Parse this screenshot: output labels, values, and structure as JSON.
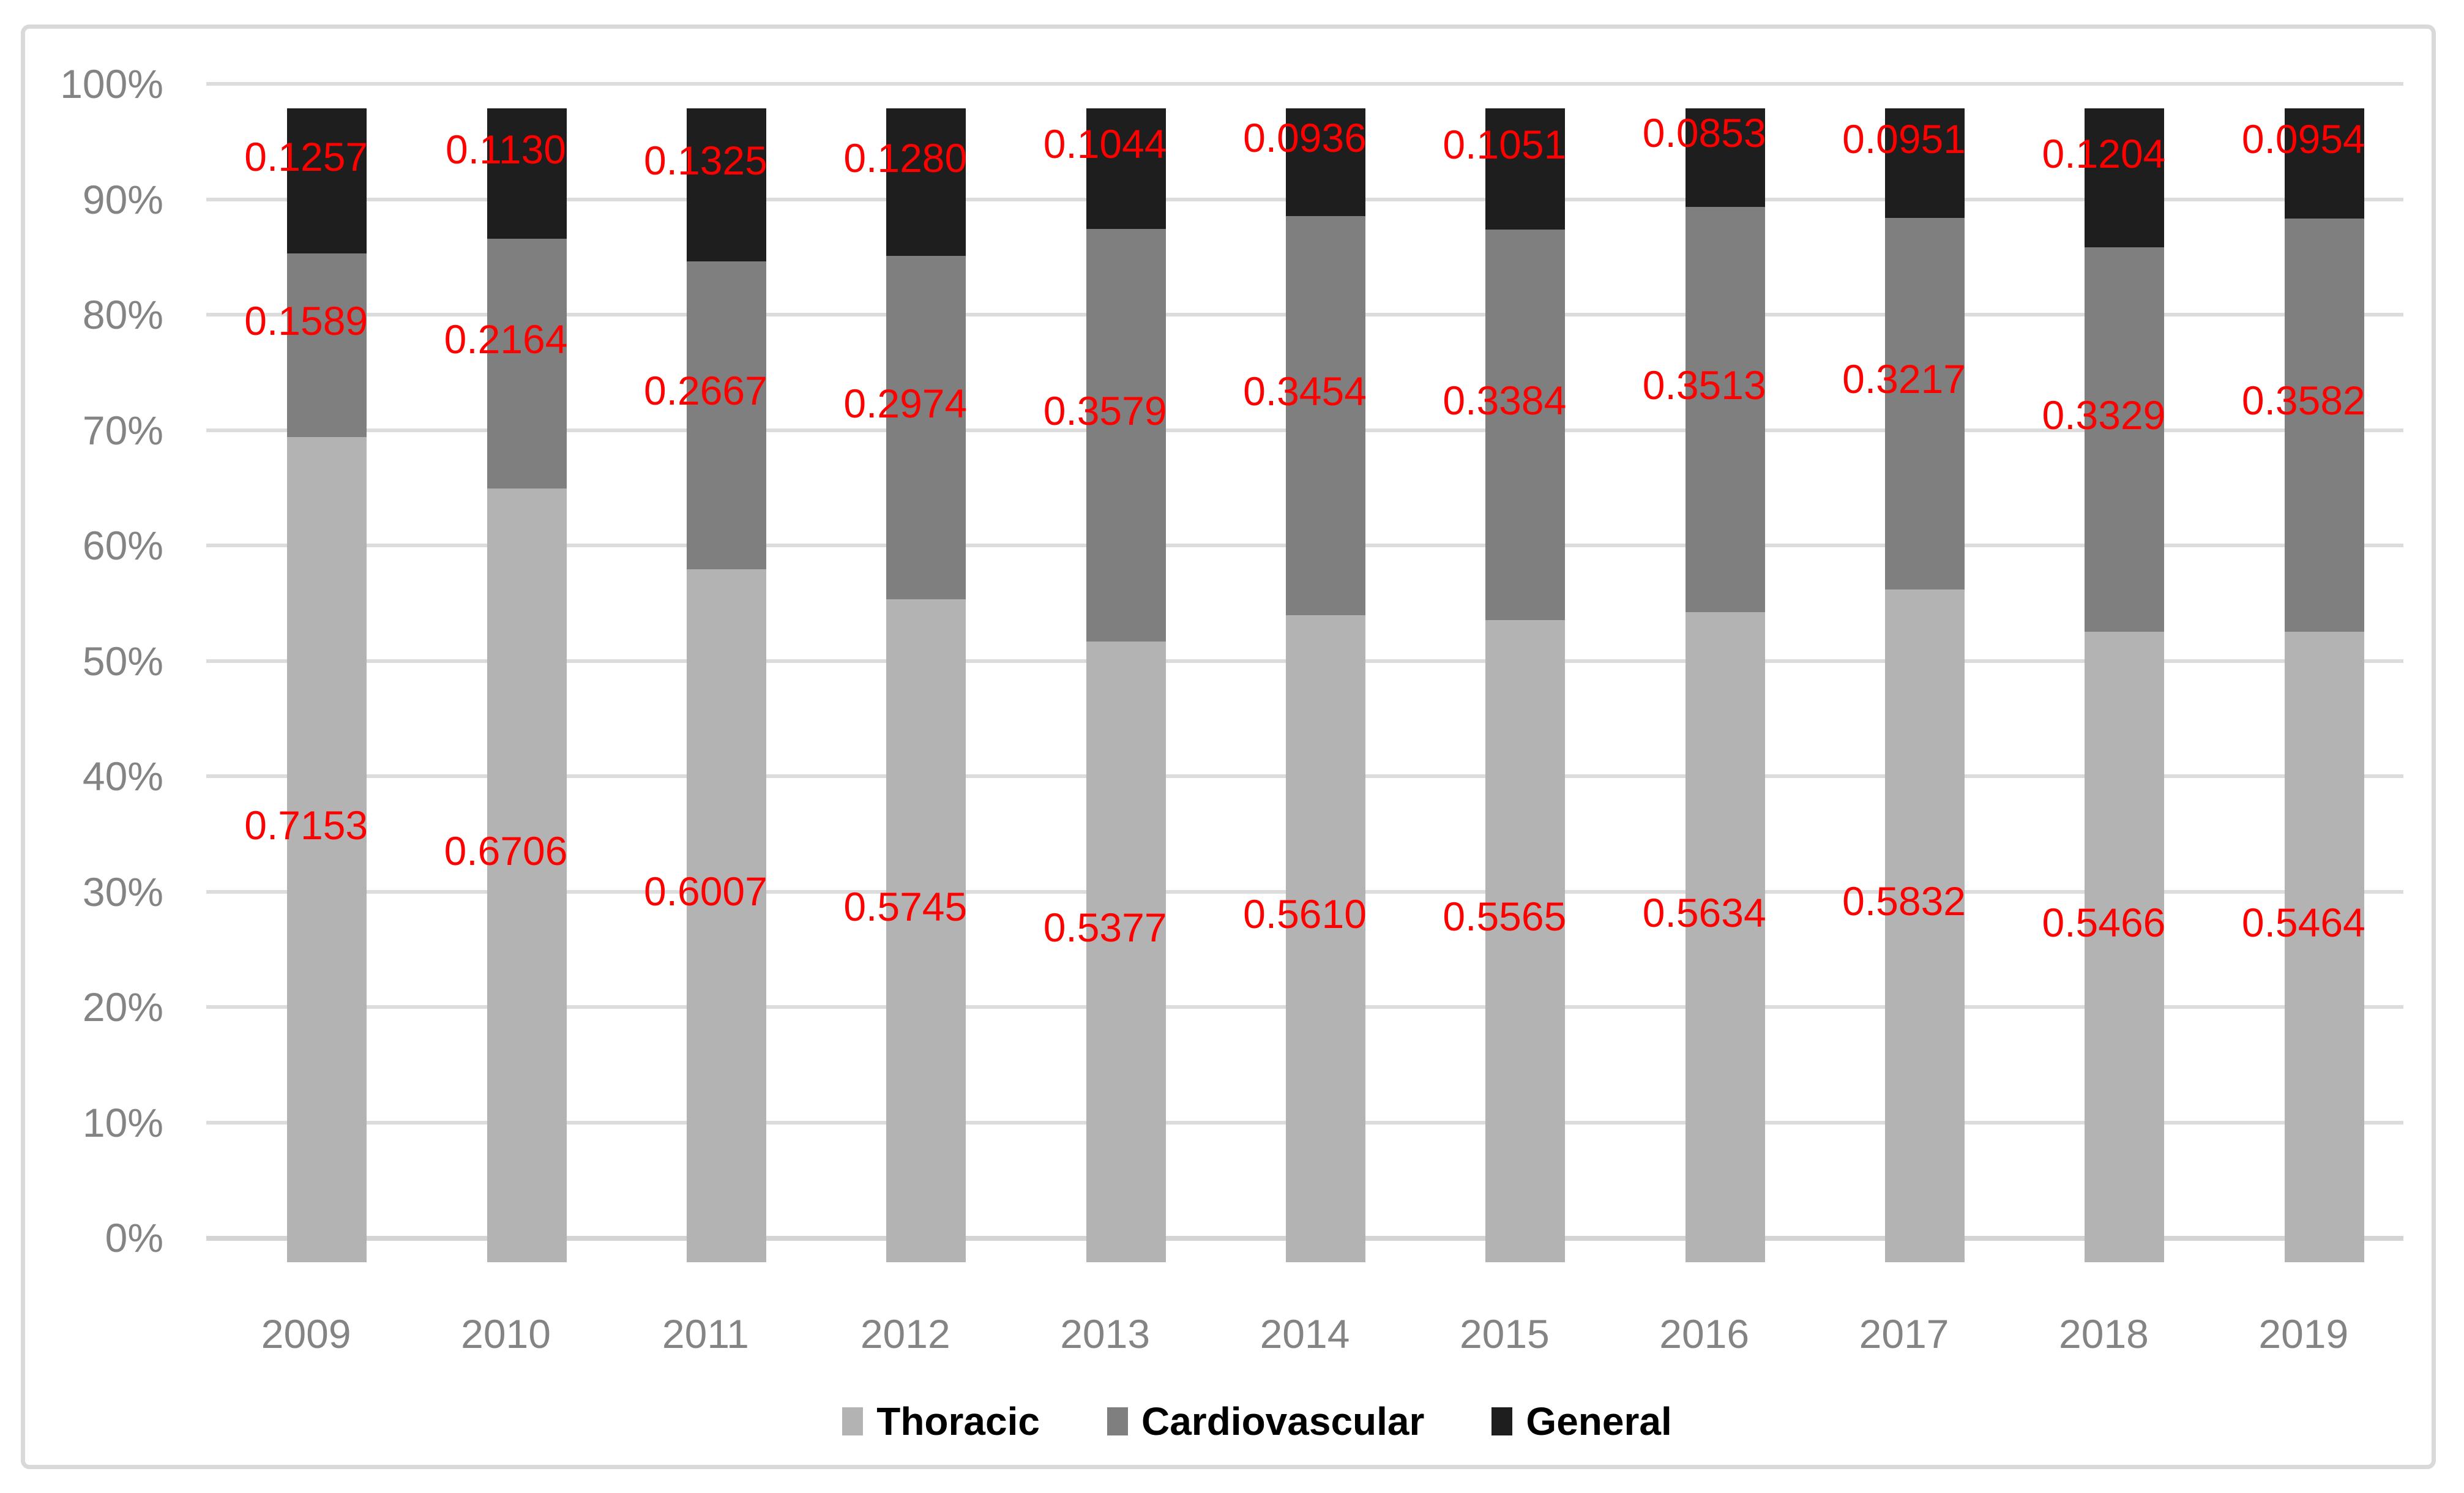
{
  "chart_data": {
    "type": "bar",
    "subtype": "stacked-100-percent",
    "title": "",
    "xlabel": "",
    "ylabel": "",
    "grid": true,
    "legend_position": "bottom",
    "ylim": [
      0,
      1
    ],
    "y_ticks": [
      "0%",
      "10%",
      "20%",
      "30%",
      "40%",
      "50%",
      "60%",
      "70%",
      "80%",
      "90%",
      "100%"
    ],
    "categories": [
      "2009",
      "2010",
      "2011",
      "2012",
      "2013",
      "2014",
      "2015",
      "2016",
      "2017",
      "2018",
      "2019"
    ],
    "series": [
      {
        "name": "Thoracic",
        "color": "#b3b3b3",
        "values": [
          0.7153,
          0.6706,
          0.6007,
          0.5745,
          0.5377,
          0.561,
          0.5565,
          0.5634,
          0.5832,
          0.5466,
          0.5464
        ],
        "labels": [
          "0.7153",
          "0.6706",
          "0.6007",
          "0.5745",
          "0.5377",
          "0.5610",
          "0.5565",
          "0.5634",
          "0.5832",
          "0.5466",
          "0.5464"
        ]
      },
      {
        "name": "Cardiovascular",
        "color": "#7f7f7f",
        "values": [
          0.1589,
          0.2164,
          0.2667,
          0.2974,
          0.3579,
          0.3454,
          0.3384,
          0.3513,
          0.3217,
          0.3329,
          0.3582
        ],
        "labels": [
          "0.1589",
          "0.2164",
          "0.2667",
          "0.2974",
          "0.3579",
          "0.3454",
          "0.3384",
          "0.3513",
          "0.3217",
          "0.3329",
          "0.3582"
        ]
      },
      {
        "name": "General",
        "color": "#1e1e1e",
        "values": [
          0.1257,
          0.113,
          0.1325,
          0.128,
          0.1044,
          0.0936,
          0.1051,
          0.0853,
          0.0951,
          0.1204,
          0.0954
        ],
        "labels": [
          "0.1257",
          "0.1130",
          "0.1325",
          "0.1280",
          "0.1044",
          "0.0936",
          "0.1051",
          "0.0853",
          "0.0951",
          "0.1204",
          "0.0954"
        ]
      }
    ],
    "data_label_color": "#ff0000",
    "gridline_color": "#dcdcdc",
    "axis_text_color": "#848484"
  }
}
